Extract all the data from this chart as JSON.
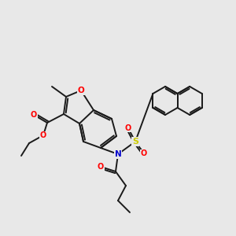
{
  "background_color": "#e8e8e8",
  "bond_color": "#1a1a1a",
  "line_width": 1.4,
  "atom_colors": {
    "O": "#ff0000",
    "N": "#0000cc",
    "S": "#cccc00",
    "C": "#1a1a1a"
  },
  "font_size_atom": 7.5,
  "fig_width": 3.0,
  "fig_height": 3.0,
  "dpi": 100
}
